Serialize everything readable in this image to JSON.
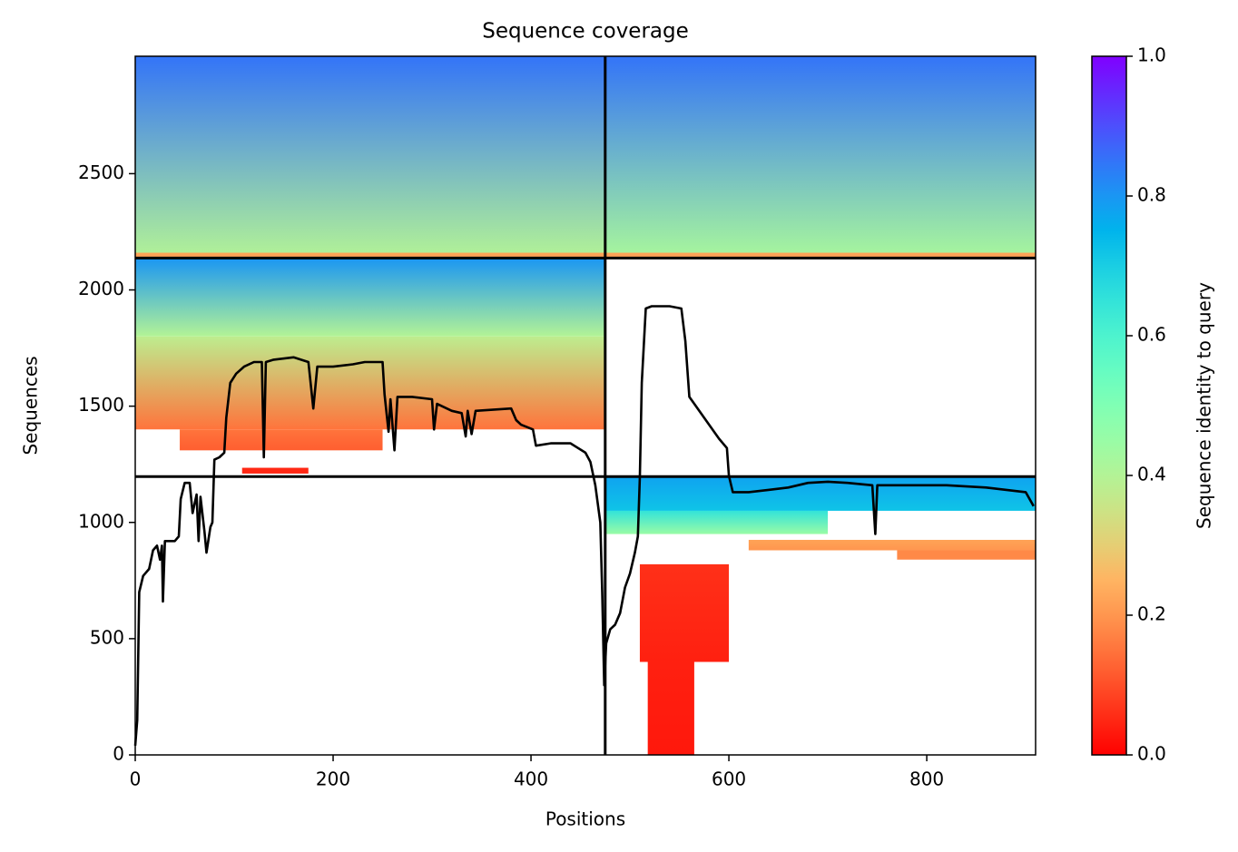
{
  "chart_data": {
    "type": "coverage",
    "title": "Sequence coverage",
    "x_label": "Positions",
    "y_label": "Sequences",
    "colorbar_label": "Sequence identity to query",
    "colormap": "rainbow_r",
    "clim": [
      0,
      1
    ],
    "cticks": [
      {
        "value": 0,
        "label": "0.0"
      },
      {
        "value": 0.2,
        "label": "0.2"
      },
      {
        "value": 0.4,
        "label": "0.4"
      },
      {
        "value": 0.6,
        "label": "0.6"
      },
      {
        "value": 0.8,
        "label": "0.8"
      },
      {
        "value": 1,
        "label": "1.0"
      }
    ],
    "xlim": [
      0,
      910
    ],
    "ylim": [
      0,
      3005
    ],
    "xticks": [
      0,
      200,
      400,
      600,
      800
    ],
    "yticks": [
      0,
      500,
      1000,
      1500,
      2000,
      2500
    ],
    "x_dividers": [
      475
    ],
    "y_dividers": [
      1197,
      2137
    ],
    "blocks": [
      {
        "x": [
          0,
          475
        ],
        "y": [
          2137,
          3005
        ],
        "identity": [
          0.85,
          0.4
        ]
      },
      {
        "x": [
          0,
          475
        ],
        "y": [
          2137,
          2160
        ],
        "identity": [
          0.22,
          0.22
        ]
      },
      {
        "x": [
          475,
          910
        ],
        "y": [
          2137,
          3005
        ],
        "identity": [
          0.85,
          0.42
        ]
      },
      {
        "x": [
          475,
          910
        ],
        "y": [
          2137,
          2160
        ],
        "identity": [
          0.22,
          0.22
        ]
      },
      {
        "x": [
          0,
          475
        ],
        "y": [
          1800,
          2137
        ],
        "identity": [
          0.8,
          0.4
        ]
      },
      {
        "x": [
          0,
          475
        ],
        "y": [
          1400,
          1800
        ],
        "identity": [
          0.38,
          0.15
        ]
      },
      {
        "x": [
          45,
          250
        ],
        "y": [
          1310,
          1400
        ],
        "identity": [
          0.15,
          0.12
        ]
      },
      {
        "x": [
          108,
          175
        ],
        "y": [
          1210,
          1235
        ],
        "identity": [
          0.05,
          0.05
        ]
      },
      {
        "x": [
          475,
          910
        ],
        "y": [
          1050,
          1197
        ],
        "identity": [
          0.78,
          0.72
        ]
      },
      {
        "x": [
          475,
          700
        ],
        "y": [
          950,
          1050
        ],
        "identity": [
          0.65,
          0.45
        ]
      },
      {
        "x": [
          620,
          910
        ],
        "y": [
          880,
          925
        ],
        "identity": [
          0.22,
          0.2
        ]
      },
      {
        "x": [
          770,
          910
        ],
        "y": [
          840,
          880
        ],
        "identity": [
          0.18,
          0.18
        ]
      },
      {
        "x": [
          510,
          600
        ],
        "y": [
          400,
          820
        ],
        "identity": [
          0.06,
          0.04
        ]
      },
      {
        "x": [
          518,
          565
        ],
        "y": [
          0,
          400
        ],
        "identity": [
          0.04,
          0.03
        ]
      }
    ],
    "coverage": {
      "x": [
        0,
        2,
        4,
        8,
        14,
        18,
        22,
        25,
        27,
        28,
        30,
        40,
        44,
        46,
        50,
        55,
        58,
        62,
        64,
        66,
        70,
        72,
        76,
        78,
        80,
        85,
        90,
        92,
        96,
        102,
        110,
        120,
        128,
        130,
        132,
        140,
        160,
        175,
        180,
        184,
        200,
        220,
        232,
        250,
        252,
        256,
        258,
        262,
        265,
        280,
        300,
        302,
        305,
        320,
        330,
        334,
        336,
        340,
        344,
        380,
        385,
        390,
        402,
        405,
        420,
        440,
        455,
        460,
        465,
        470,
        472,
        474,
        476,
        480,
        485,
        490,
        495,
        500,
        505,
        508,
        510,
        512,
        516,
        522,
        540,
        552,
        556,
        560,
        570,
        580,
        590,
        598,
        600,
        604,
        620,
        640,
        660,
        680,
        700,
        720,
        745,
        748,
        750,
        780,
        820,
        860,
        900,
        908
      ],
      "values": [
        40,
        150,
        700,
        770,
        800,
        880,
        900,
        840,
        900,
        660,
        920,
        920,
        940,
        1100,
        1170,
        1170,
        1040,
        1120,
        920,
        1110,
        960,
        870,
        980,
        1000,
        1270,
        1280,
        1300,
        1450,
        1600,
        1640,
        1670,
        1690,
        1690,
        1280,
        1690,
        1700,
        1710,
        1690,
        1490,
        1670,
        1670,
        1680,
        1690,
        1690,
        1550,
        1390,
        1530,
        1310,
        1540,
        1540,
        1530,
        1400,
        1510,
        1480,
        1470,
        1370,
        1480,
        1380,
        1480,
        1490,
        1440,
        1420,
        1400,
        1330,
        1340,
        1340,
        1300,
        1260,
        1160,
        1000,
        700,
        300,
        480,
        540,
        560,
        610,
        720,
        780,
        870,
        940,
        1200,
        1600,
        1920,
        1930,
        1930,
        1920,
        1780,
        1540,
        1480,
        1420,
        1360,
        1320,
        1200,
        1130,
        1130,
        1140,
        1150,
        1170,
        1175,
        1170,
        1160,
        950,
        1160,
        1160,
        1160,
        1150,
        1130,
        1070
      ]
    }
  }
}
